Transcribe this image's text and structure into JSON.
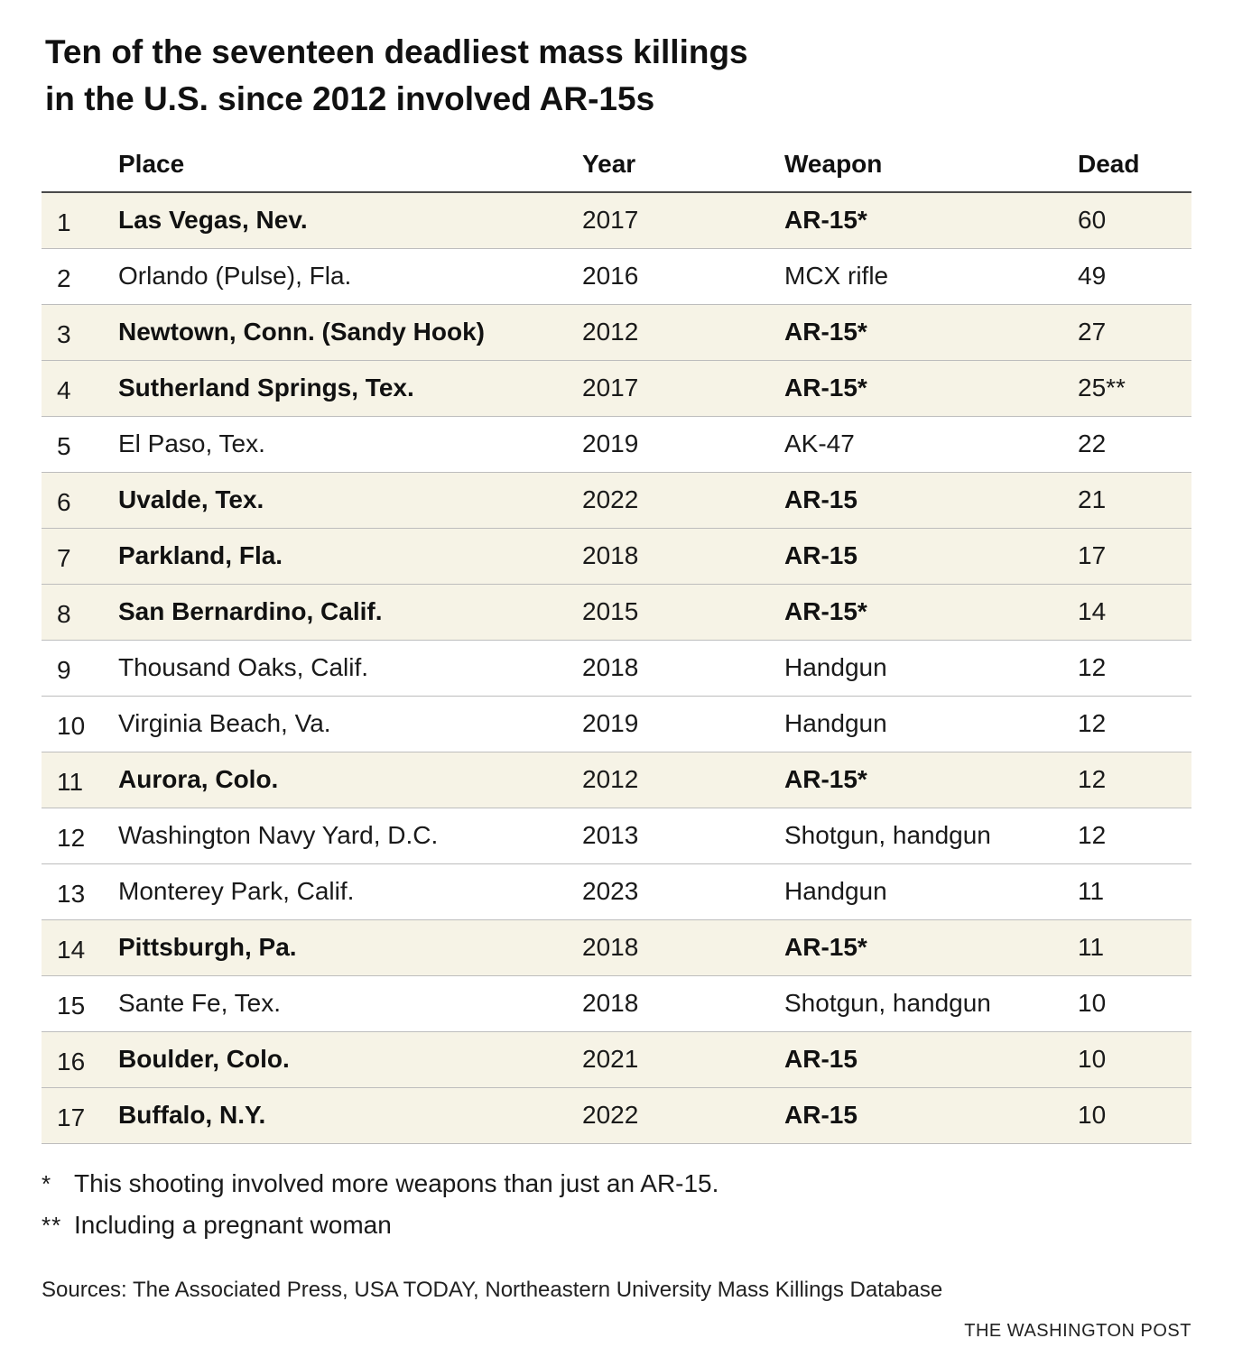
{
  "title_line1": "Ten of the seventeen deadliest mass killings",
  "title_line2": "in the U.S. since 2012 involved AR-15s",
  "chart_data": {
    "type": "table",
    "title": "Ten of the seventeen deadliest mass killings in the U.S. since 2012 involved AR-15s",
    "columns": [
      "",
      "Place",
      "Year",
      "Weapon",
      "Dead"
    ],
    "rows": [
      {
        "rank": "1",
        "place": "Las Vegas, Nev.",
        "year": "2017",
        "weapon": "AR-15*",
        "dead": "60",
        "ar15": true
      },
      {
        "rank": "2",
        "place": "Orlando (Pulse), Fla.",
        "year": "2016",
        "weapon": "MCX rifle",
        "dead": "49",
        "ar15": false
      },
      {
        "rank": "3",
        "place": "Newtown, Conn. (Sandy Hook)",
        "year": "2012",
        "weapon": "AR-15*",
        "dead": "27",
        "ar15": true
      },
      {
        "rank": "4",
        "place": "Sutherland Springs, Tex.",
        "year": "2017",
        "weapon": "AR-15*",
        "dead": "25**",
        "ar15": true
      },
      {
        "rank": "5",
        "place": "El Paso, Tex.",
        "year": "2019",
        "weapon": "AK-47",
        "dead": "22",
        "ar15": false
      },
      {
        "rank": "6",
        "place": "Uvalde, Tex.",
        "year": "2022",
        "weapon": "AR-15",
        "dead": "21",
        "ar15": true
      },
      {
        "rank": "7",
        "place": "Parkland, Fla.",
        "year": "2018",
        "weapon": "AR-15",
        "dead": "17",
        "ar15": true
      },
      {
        "rank": "8",
        "place": "San Bernardino, Calif.",
        "year": "2015",
        "weapon": "AR-15*",
        "dead": "14",
        "ar15": true
      },
      {
        "rank": "9",
        "place": "Thousand Oaks, Calif.",
        "year": "2018",
        "weapon": "Handgun",
        "dead": "12",
        "ar15": false
      },
      {
        "rank": "10",
        "place": "Virginia Beach, Va.",
        "year": "2019",
        "weapon": "Handgun",
        "dead": "12",
        "ar15": false
      },
      {
        "rank": "11",
        "place": "Aurora, Colo.",
        "year": "2012",
        "weapon": "AR-15*",
        "dead": "12",
        "ar15": true
      },
      {
        "rank": "12",
        "place": "Washington Navy Yard, D.C.",
        "year": "2013",
        "weapon": "Shotgun, handgun",
        "dead": "12",
        "ar15": false
      },
      {
        "rank": "13",
        "place": "Monterey Park, Calif.",
        "year": "2023",
        "weapon": "Handgun",
        "dead": "11",
        "ar15": false
      },
      {
        "rank": "14",
        "place": "Pittsburgh, Pa.",
        "year": "2018",
        "weapon": "AR-15*",
        "dead": "11",
        "ar15": true
      },
      {
        "rank": "15",
        "place": "Sante Fe, Tex.",
        "year": "2018",
        "weapon": "Shotgun, handgun",
        "dead": "10",
        "ar15": false
      },
      {
        "rank": "16",
        "place": "Boulder, Colo.",
        "year": "2021",
        "weapon": "AR-15",
        "dead": "10",
        "ar15": true
      },
      {
        "rank": "17",
        "place": "Buffalo, N.Y.",
        "year": "2022",
        "weapon": "AR-15",
        "dead": "10",
        "ar15": true
      }
    ]
  },
  "header": {
    "place": "Place",
    "year": "Year",
    "weapon": "Weapon",
    "dead": "Dead"
  },
  "notes": {
    "note1_mark": "*",
    "note1_text": "This shooting involved more weapons than just an AR-15.",
    "note2_mark": "**",
    "note2_text": "Including a pregnant woman"
  },
  "sources": "Sources: The Associated Press, USA TODAY, Northeastern University Mass Killings Database",
  "credit": "THE WASHINGTON POST",
  "colors": {
    "highlight_row": "#f6f3e6",
    "text": "#111111",
    "rule": "#bdbdbd"
  }
}
